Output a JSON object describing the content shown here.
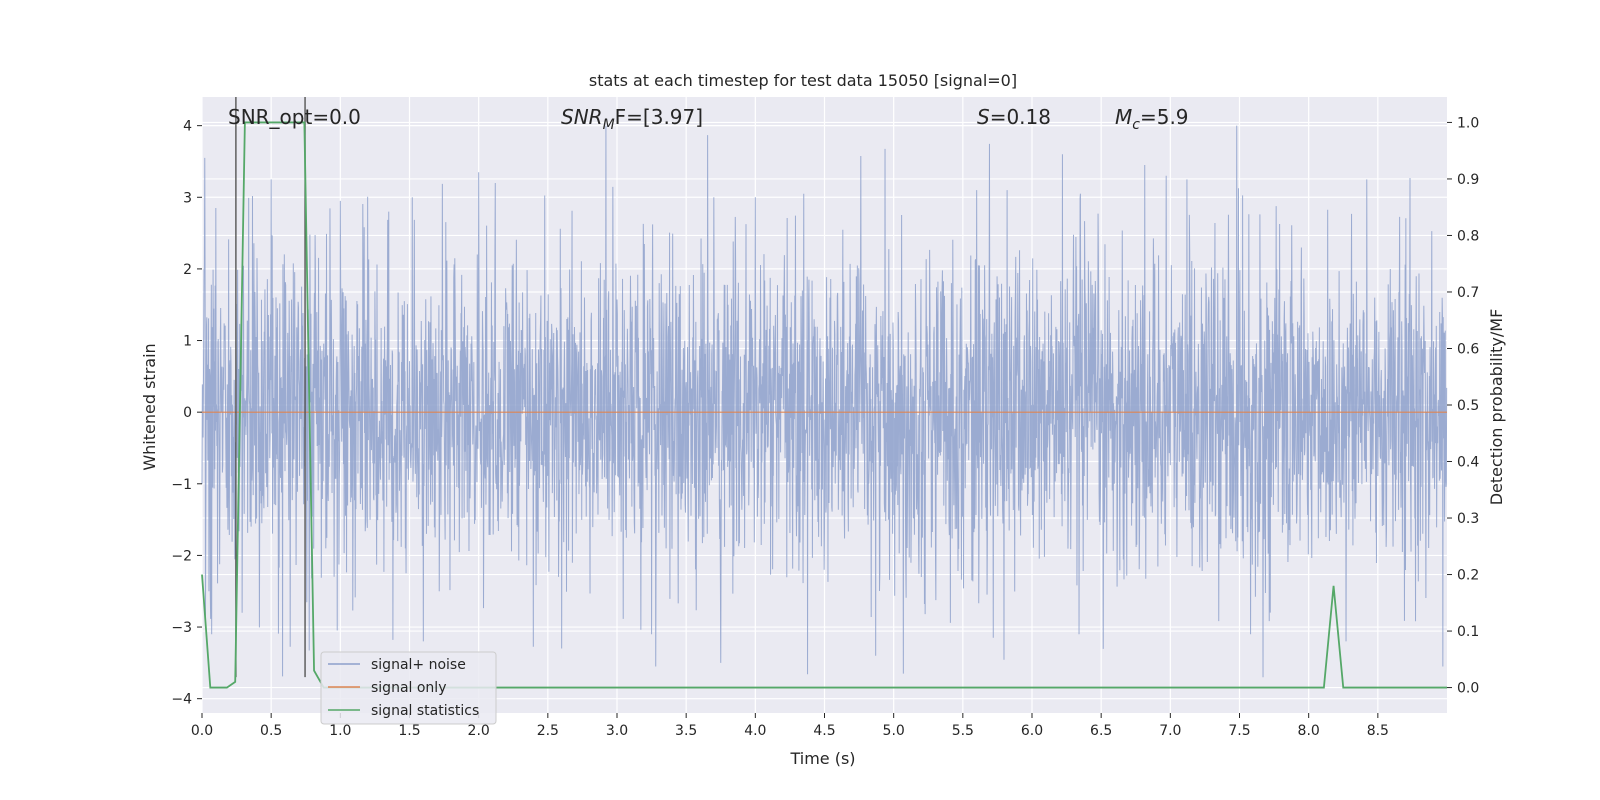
{
  "chart_data": {
    "type": "line",
    "title": "stats at each timestep for test data 15050 [signal=0]",
    "xlabel": "Time (s)",
    "ylabel": "Whitened strain",
    "ylabel_right": "Detection probability/MF",
    "xlim": [
      0.0,
      9.0
    ],
    "ylim": [
      -4.2,
      4.4
    ],
    "ylim_right": [
      -0.045,
      1.045
    ],
    "x_ticks": [
      "0.0",
      "0.5",
      "1.0",
      "1.5",
      "2.0",
      "2.5",
      "3.0",
      "3.5",
      "4.0",
      "4.5",
      "5.0",
      "5.5",
      "6.0",
      "6.5",
      "7.0",
      "7.5",
      "8.0",
      "8.5"
    ],
    "y_ticks": [
      "−4",
      "−3",
      "−2",
      "−1",
      "0",
      "1",
      "2",
      "3",
      "4"
    ],
    "y_ticks_right": [
      "0.0",
      "0.1",
      "0.2",
      "0.3",
      "0.4",
      "0.5",
      "0.6",
      "0.7",
      "0.8",
      "0.9",
      "1.0"
    ],
    "grid": true,
    "legend_position": "lower-left",
    "annotations": {
      "snr_opt": "SNR_opt=0.0",
      "snr_mf_base": "SNR",
      "snr_mf_sub": "M",
      "snr_mf_tail": "F=[3.97]",
      "s_var": "S",
      "s_val": "=0.18",
      "mc_var": "M",
      "mc_sub": "c",
      "mc_val": "=5.9"
    },
    "series": [
      {
        "name": "signal+ noise",
        "color": "#8da0cb",
        "description_noise_sigma": 1.1,
        "peaks": [
          [
            0.02,
            3.55
          ],
          [
            0.1,
            2.85
          ],
          [
            0.5,
            3.25
          ],
          [
            1.0,
            2.95
          ],
          [
            1.35,
            2.8
          ],
          [
            1.52,
            3.0
          ],
          [
            2.0,
            3.35
          ],
          [
            2.12,
            3.2
          ],
          [
            2.92,
            4.0
          ],
          [
            3.7,
            3.0
          ],
          [
            4.0,
            3.0
          ],
          [
            4.35,
            3.05
          ],
          [
            4.87,
            3.2
          ],
          [
            5.6,
            3.1
          ],
          [
            5.82,
            3.1
          ],
          [
            6.22,
            3.6
          ],
          [
            6.35,
            3.05
          ],
          [
            6.97,
            3.3
          ],
          [
            7.12,
            3.25
          ],
          [
            7.48,
            4.0
          ],
          [
            8.42,
            3.25
          ],
          [
            8.97,
            2.95
          ]
        ],
        "troughs": [
          [
            0.05,
            -2.5
          ],
          [
            0.07,
            -3.1
          ],
          [
            0.29,
            -2.8
          ],
          [
            1.6,
            -3.2
          ],
          [
            2.6,
            -3.3
          ],
          [
            3.25,
            -3.1
          ],
          [
            3.75,
            -3.5
          ],
          [
            4.87,
            -3.4
          ],
          [
            5.07,
            -3.65
          ],
          [
            5.72,
            -3.15
          ],
          [
            6.34,
            -3.1
          ],
          [
            7.58,
            -3.1
          ],
          [
            7.67,
            -3.7
          ],
          [
            8.27,
            -3.2
          ],
          [
            8.97,
            -3.55
          ]
        ]
      },
      {
        "name": "signal only",
        "color": "#dd8452",
        "x": [
          0.0,
          9.0
        ],
        "values": [
          0.0,
          0.0
        ]
      },
      {
        "name": "signal statistics",
        "color": "#55a868",
        "axis": "right",
        "x": [
          0.0,
          0.06,
          0.18,
          0.24,
          0.31,
          0.74,
          0.81,
          0.88,
          8.11,
          8.18,
          8.25,
          9.0
        ],
        "values": [
          0.2,
          0.0,
          0.0,
          0.01,
          1.0,
          1.0,
          0.03,
          0.0,
          0.0,
          0.18,
          0.0,
          0.0
        ]
      }
    ],
    "vlines": {
      "color": "#555555",
      "x": [
        0.245,
        0.745
      ],
      "ymin": [
        -3.7,
        -3.7
      ],
      "ymax": [
        4.4,
        4.4
      ]
    }
  }
}
